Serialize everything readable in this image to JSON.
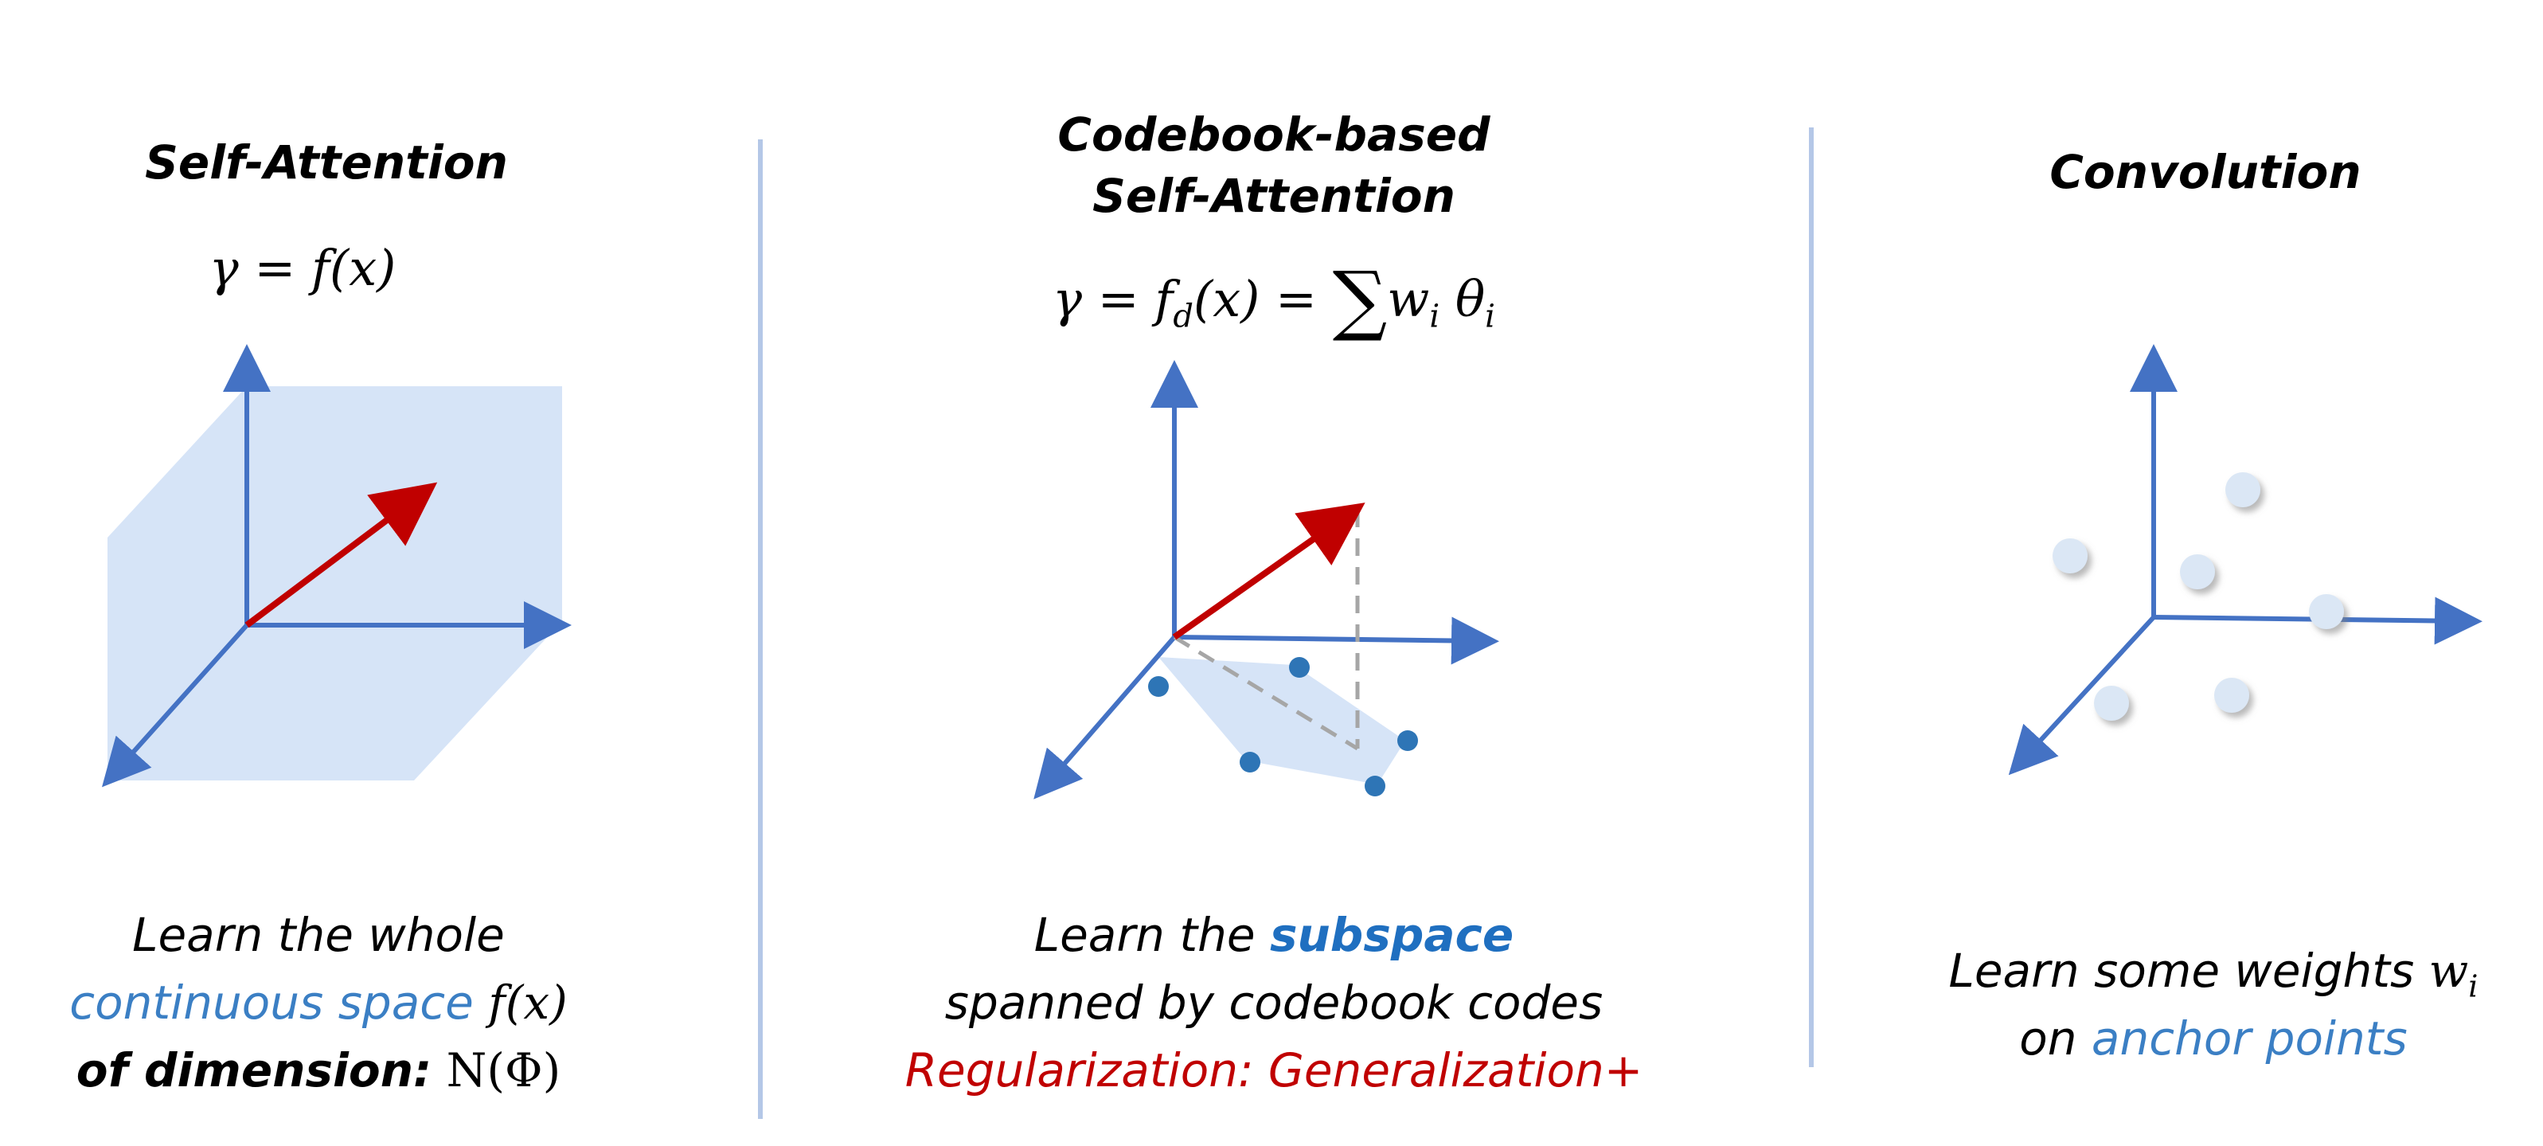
{
  "panels": [
    {
      "title": "Self-Attention",
      "formula": "γ = f(x)",
      "caption": {
        "line1": "Learn the whole",
        "line2_highlight": "continuous space",
        "line2_math": "f(x)",
        "line3_bold": "of dimension:",
        "line3_math": "N(Φ)"
      }
    },
    {
      "title_line1": "Codebook-based",
      "title_line2": "Self-Attention",
      "formula_lhs": "γ = f",
      "formula_sub": "d",
      "formula_mid": "(x) =",
      "formula_sum": "∑",
      "formula_w": "w",
      "formula_w_sub": "i",
      "formula_theta": "θ",
      "formula_theta_sub": "i",
      "caption": {
        "line1_prefix": "Learn the ",
        "line1_highlight": "subspace",
        "line2": "spanned by codebook codes",
        "line3": "Regularization: Generalization+"
      }
    },
    {
      "title": "Convolution",
      "caption": {
        "line1_prefix": "Learn some weights ",
        "line1_math": "w",
        "line1_math_sub": "i",
        "line2_prefix": "on ",
        "line2_highlight": "anchor points"
      }
    }
  ],
  "colors": {
    "axis": "#4472c4",
    "vector": "#c00000",
    "region": "#d6e4f7",
    "codebook_dot": "#2e75b6",
    "anchor_dot": "#dbe7f5",
    "divider": "#b4c7e7",
    "projection": "#a6a6a6",
    "blue_text": "#3b7fc4",
    "red_text": "#c00000"
  }
}
